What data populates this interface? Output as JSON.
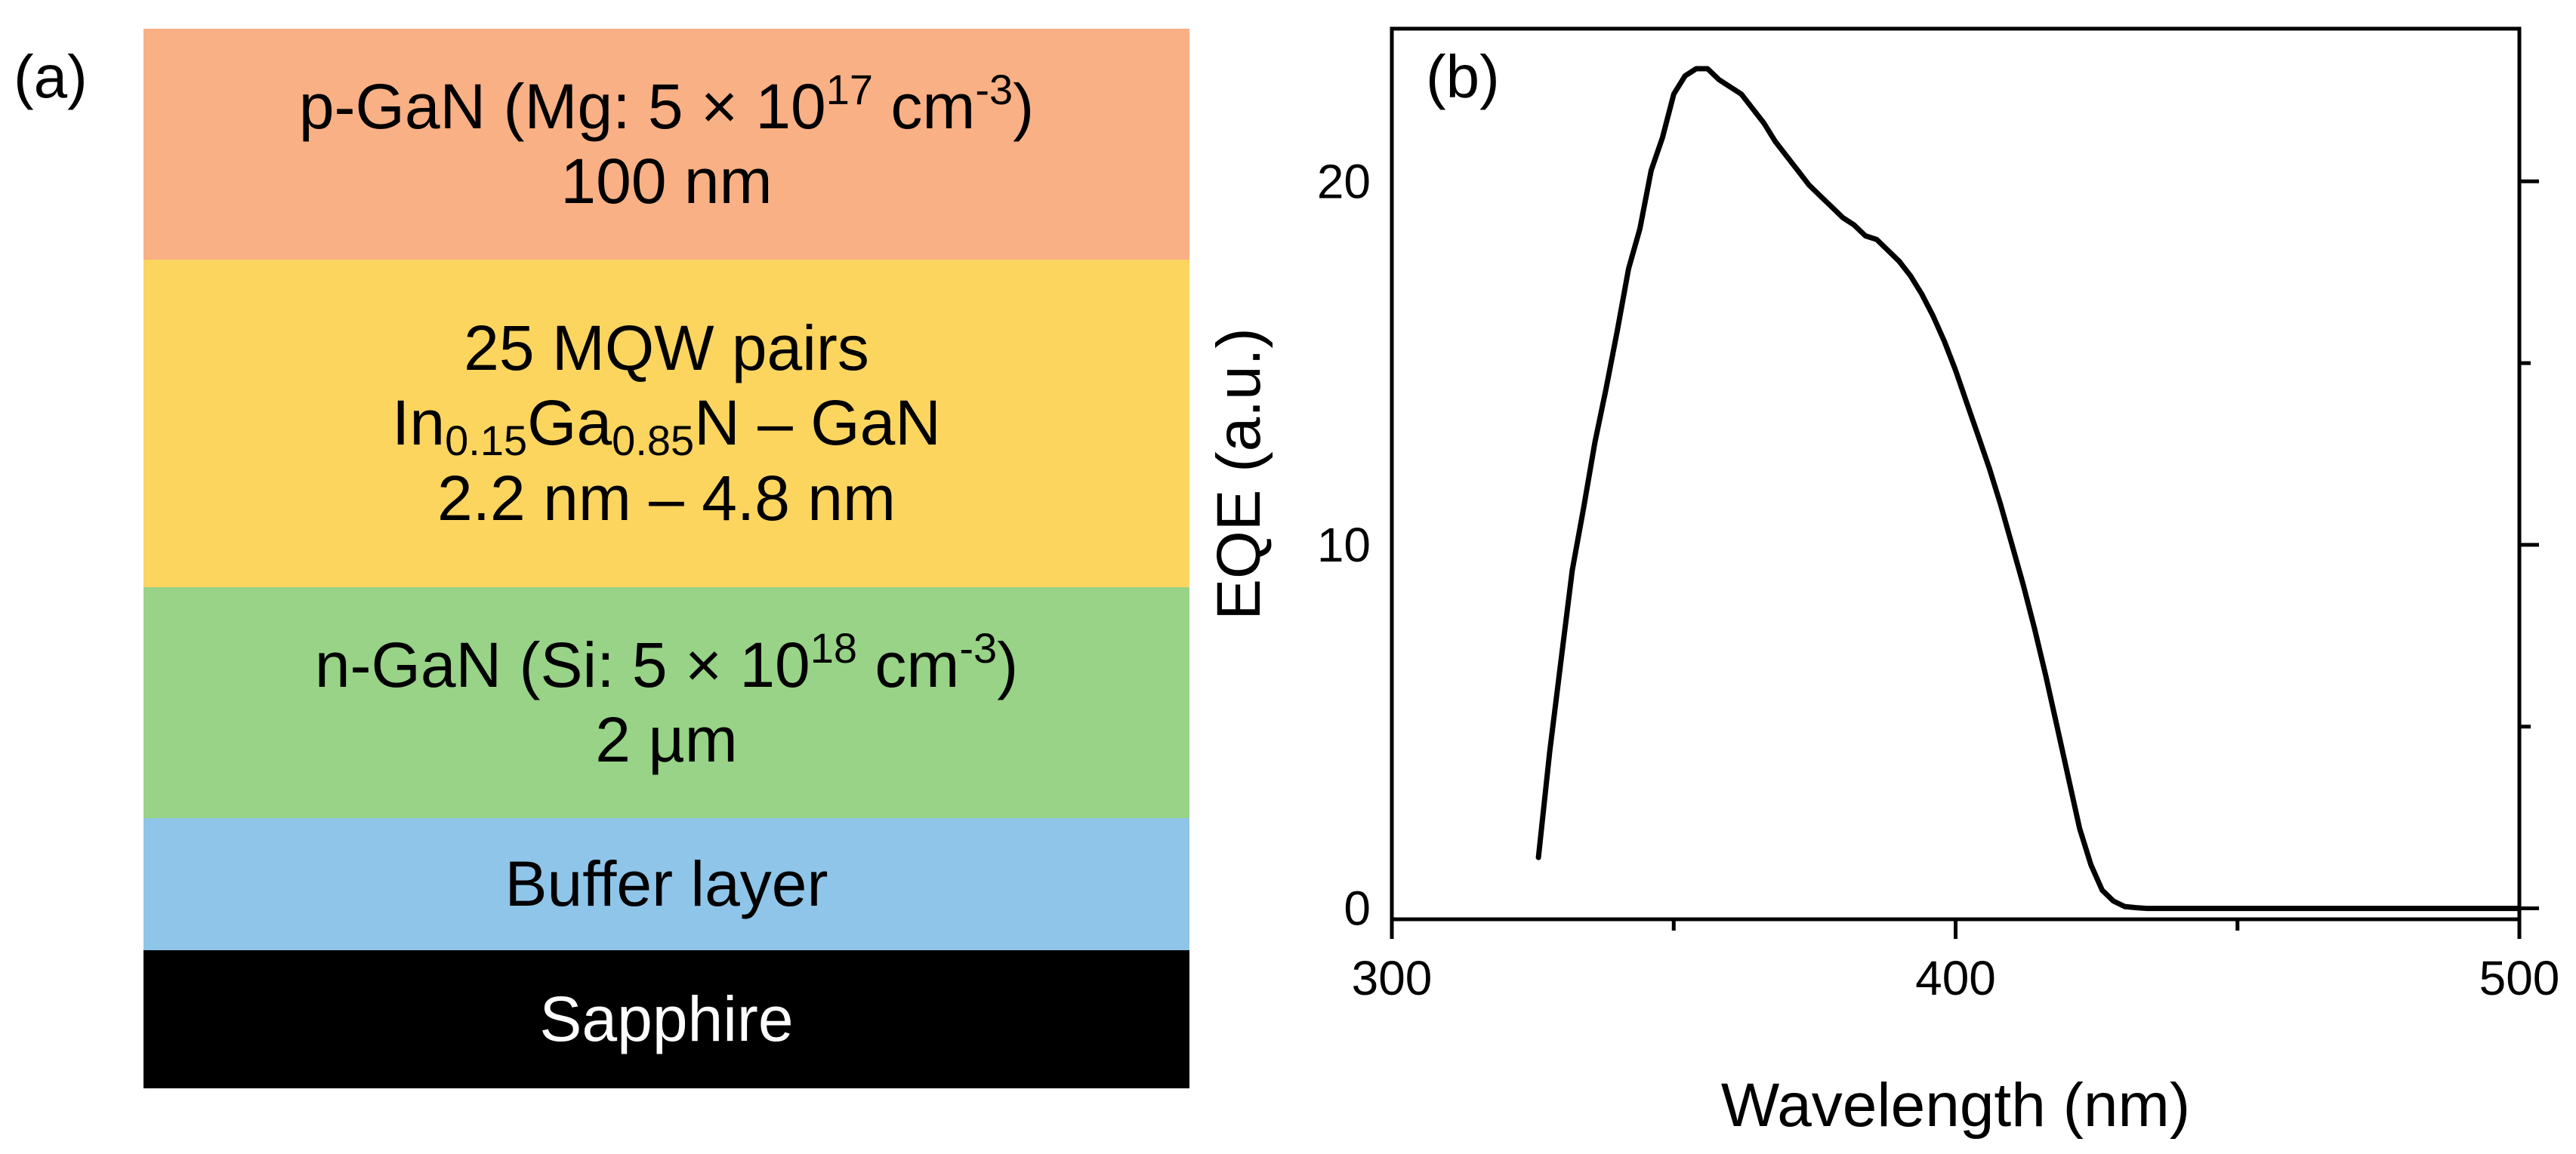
{
  "panel_a": {
    "label": "(a)",
    "layers": [
      {
        "name": "p-GaN",
        "color": "#F9B084",
        "line1": {
          "before": "p-GaN (Mg: 5 × 10",
          "sup": "17",
          "middle": " cm",
          "sup2": "-3",
          "after": ")"
        },
        "line2": "100 nm"
      },
      {
        "name": "MQW",
        "color": "#FCD55F",
        "line1": "25 MQW pairs",
        "line2": {
          "t1": "In",
          "s1": "0.15",
          "t2": "Ga",
          "s2": "0.85",
          "t3": "N – GaN"
        },
        "line3": "2.2 nm – 4.8 nm"
      },
      {
        "name": "n-GaN",
        "color": "#98D387",
        "line1": {
          "before": "n-GaN (Si: 5 × 10",
          "sup": "18",
          "middle": " cm",
          "sup2": "-3",
          "after": ")"
        },
        "line2": "2 µm"
      },
      {
        "name": "Buffer",
        "color": "#8FC5E8",
        "line1": "Buffer layer"
      },
      {
        "name": "Sapphire",
        "color": "#000000",
        "line1": "Sapphire"
      }
    ]
  },
  "chart_data": {
    "label": "(b)",
    "type": "line",
    "xlabel": "Wavelength (nm)",
    "ylabel": "EQE (a.u.)",
    "xlim": [
      300,
      500
    ],
    "ylim": [
      -0.3,
      24.2
    ],
    "xticks": [
      300,
      400,
      500
    ],
    "yticks": [
      0,
      10,
      20
    ],
    "x_minor_ticks": [
      350,
      450
    ],
    "y_minor_ticks": [
      5,
      15
    ],
    "line_color": "#000000",
    "series": [
      {
        "name": "EQE",
        "x": [
          326,
          328,
          330,
          332,
          334,
          336,
          338,
          340,
          342,
          344,
          346,
          348,
          350,
          352,
          354,
          356,
          358,
          360,
          362,
          364,
          366,
          368,
          370,
          372,
          374,
          376,
          378,
          380,
          382,
          384,
          386,
          388,
          390,
          392,
          394,
          396,
          398,
          400,
          402,
          404,
          406,
          408,
          410,
          412,
          414,
          416,
          418,
          420,
          422,
          424,
          426,
          428,
          430,
          432,
          434,
          436,
          440,
          450,
          460,
          470,
          480,
          490,
          500
        ],
        "y": [
          1.4,
          4.3,
          6.8,
          9.3,
          11.0,
          12.8,
          14.3,
          15.9,
          17.6,
          18.7,
          20.3,
          21.2,
          22.4,
          22.9,
          23.1,
          23.1,
          22.8,
          22.6,
          22.4,
          22.0,
          21.6,
          21.1,
          20.7,
          20.3,
          19.9,
          19.6,
          19.3,
          19.0,
          18.8,
          18.5,
          18.4,
          18.1,
          17.8,
          17.4,
          16.9,
          16.3,
          15.6,
          14.8,
          13.9,
          13.0,
          12.1,
          11.1,
          10.0,
          8.9,
          7.7,
          6.4,
          5.0,
          3.6,
          2.2,
          1.2,
          0.5,
          0.2,
          0.05,
          0.02,
          0.0,
          0.0,
          0.0,
          0.0,
          0.0,
          0.0,
          0.0,
          0.0,
          0.0
        ]
      }
    ]
  }
}
